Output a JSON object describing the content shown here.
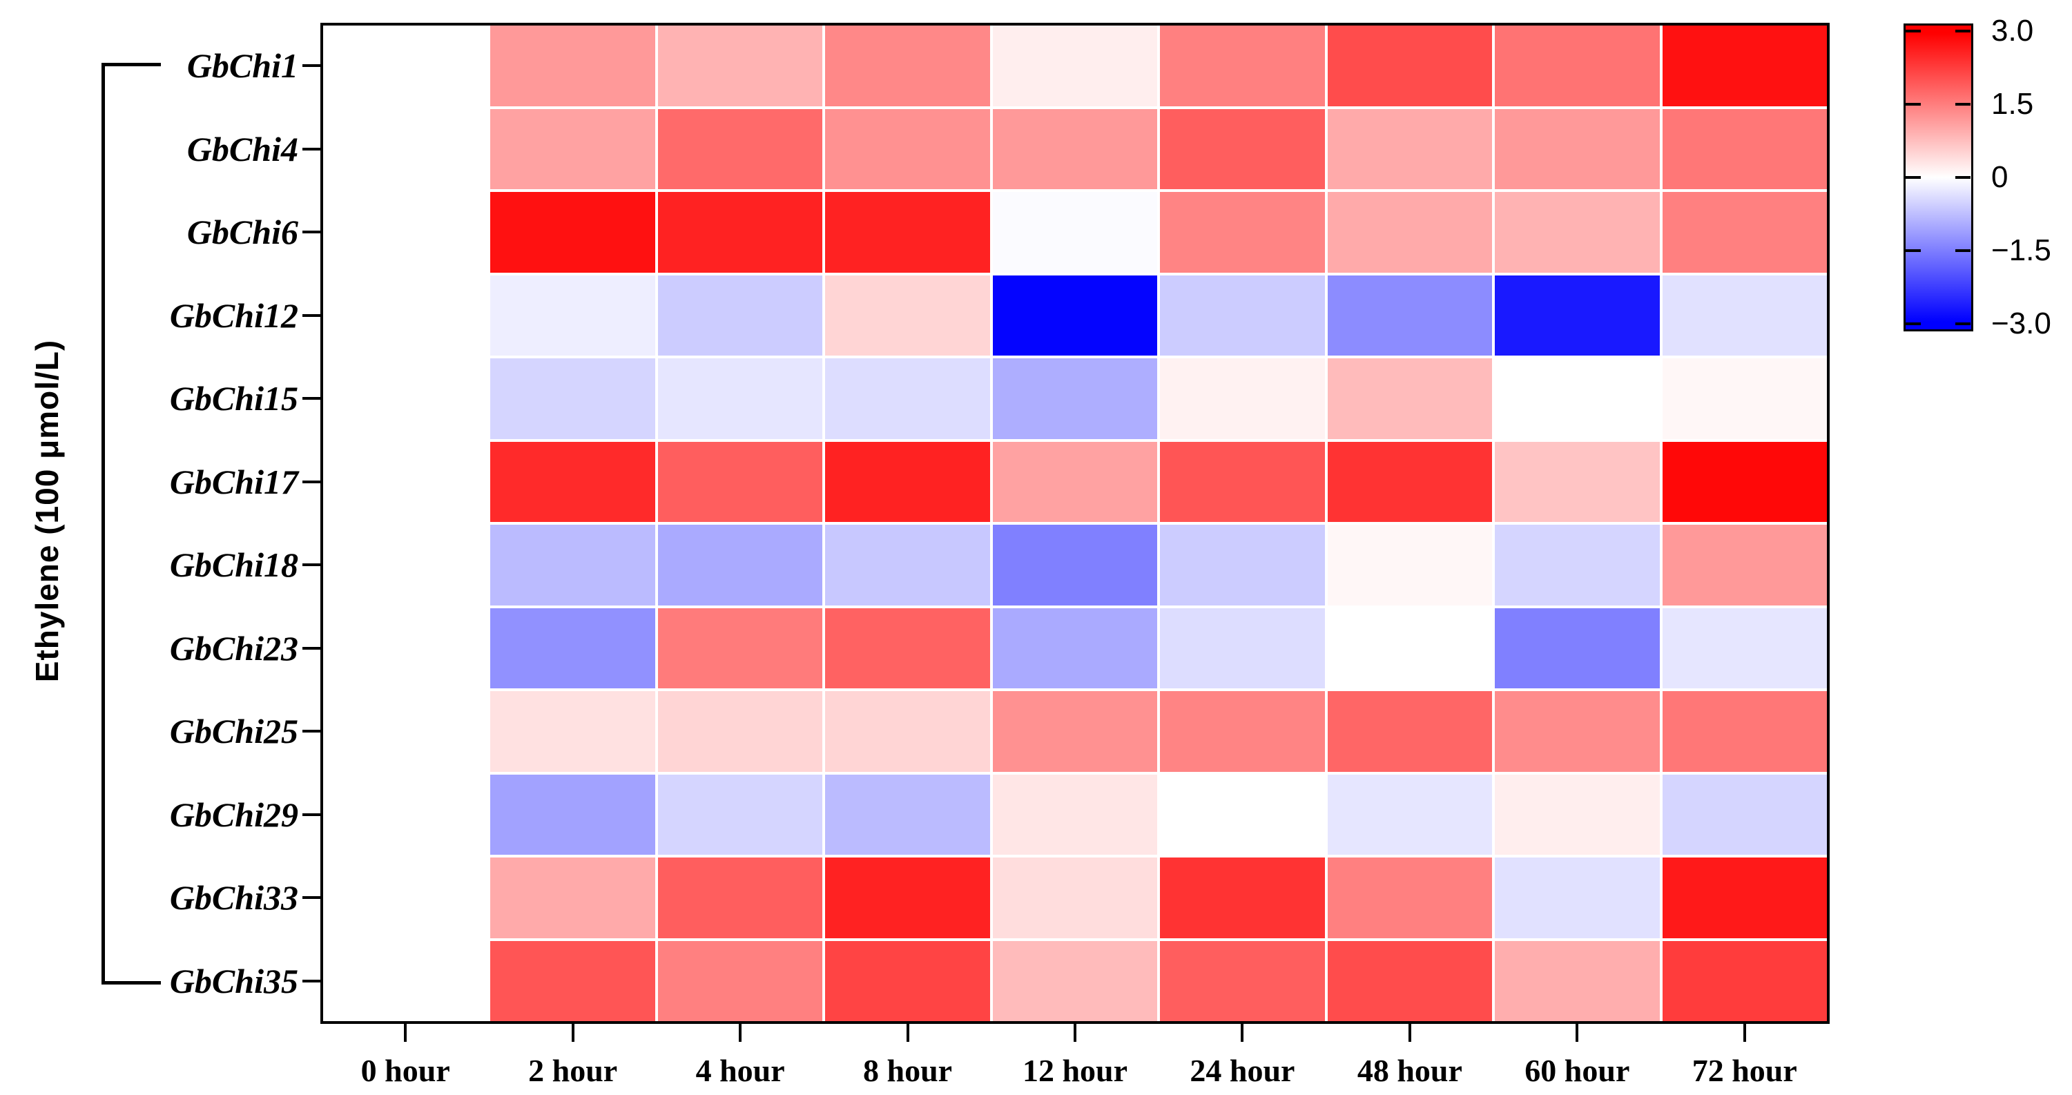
{
  "figure": {
    "y_axis_label": "Ethylene (100 μmol/L)",
    "background": "#FFFFFF",
    "frame_color": "#000000"
  },
  "colorbar": {
    "tick_labels": [
      "3.0",
      "1.5",
      "0",
      "−1.5",
      "−3.0"
    ],
    "tick_values": [
      3.0,
      1.5,
      0,
      -1.5,
      -3.0
    ],
    "max_color": "#FF0000",
    "mid_color": "#FFFFFF",
    "min_color": "#0000FF"
  },
  "chart_data": {
    "type": "heatmap",
    "title": "",
    "xlabel": "",
    "ylabel": "Ethylene (100 μmol/L)",
    "legend_position": "top-right",
    "grid": false,
    "columns": [
      "0 hour",
      "2 hour",
      "4 hour",
      "8 hour",
      "12 hour",
      "24 hour",
      "48 hour",
      "60 hour",
      "72 hour"
    ],
    "rows": [
      "GbChi1",
      "GbChi4",
      "GbChi6",
      "GbChi12",
      "GbChi15",
      "GbChi17",
      "GbChi18",
      "GbChi23",
      "GbChi25",
      "GbChi29",
      "GbChi33",
      "GbChi35"
    ],
    "value_range": [
      -3.0,
      3.0
    ],
    "colormap": "red-white-blue",
    "values": [
      [
        0,
        1.2,
        0.9,
        1.4,
        0.2,
        1.5,
        2.1,
        1.65,
        2.8
      ],
      [
        0,
        1.1,
        1.75,
        1.3,
        1.2,
        1.9,
        1.0,
        1.2,
        1.6
      ],
      [
        0,
        2.8,
        2.6,
        2.6,
        -0.05,
        1.45,
        1.0,
        0.9,
        1.5
      ],
      [
        0,
        -0.2,
        -0.6,
        0.5,
        -2.95,
        -0.6,
        -1.35,
        -2.7,
        -0.35
      ],
      [
        0,
        -0.5,
        -0.3,
        -0.4,
        -0.95,
        0.15,
        0.8,
        0.0,
        0.1
      ],
      [
        0,
        2.5,
        1.9,
        2.6,
        1.1,
        2.0,
        2.4,
        0.7,
        2.9
      ],
      [
        0,
        -0.8,
        -1.0,
        -0.65,
        -1.5,
        -0.6,
        0.1,
        -0.5,
        1.2
      ],
      [
        0,
        -1.3,
        1.55,
        1.85,
        -1.0,
        -0.4,
        0.0,
        -1.5,
        -0.3
      ],
      [
        0,
        0.35,
        0.5,
        0.5,
        1.3,
        1.45,
        1.8,
        1.35,
        1.6
      ],
      [
        0,
        -1.1,
        -0.5,
        -0.8,
        0.3,
        0.0,
        -0.3,
        0.2,
        -0.5
      ],
      [
        0,
        1.0,
        1.9,
        2.6,
        0.4,
        2.4,
        1.5,
        -0.35,
        2.7
      ],
      [
        0,
        2.0,
        1.5,
        2.2,
        0.8,
        1.9,
        2.1,
        0.95,
        2.3
      ]
    ]
  }
}
